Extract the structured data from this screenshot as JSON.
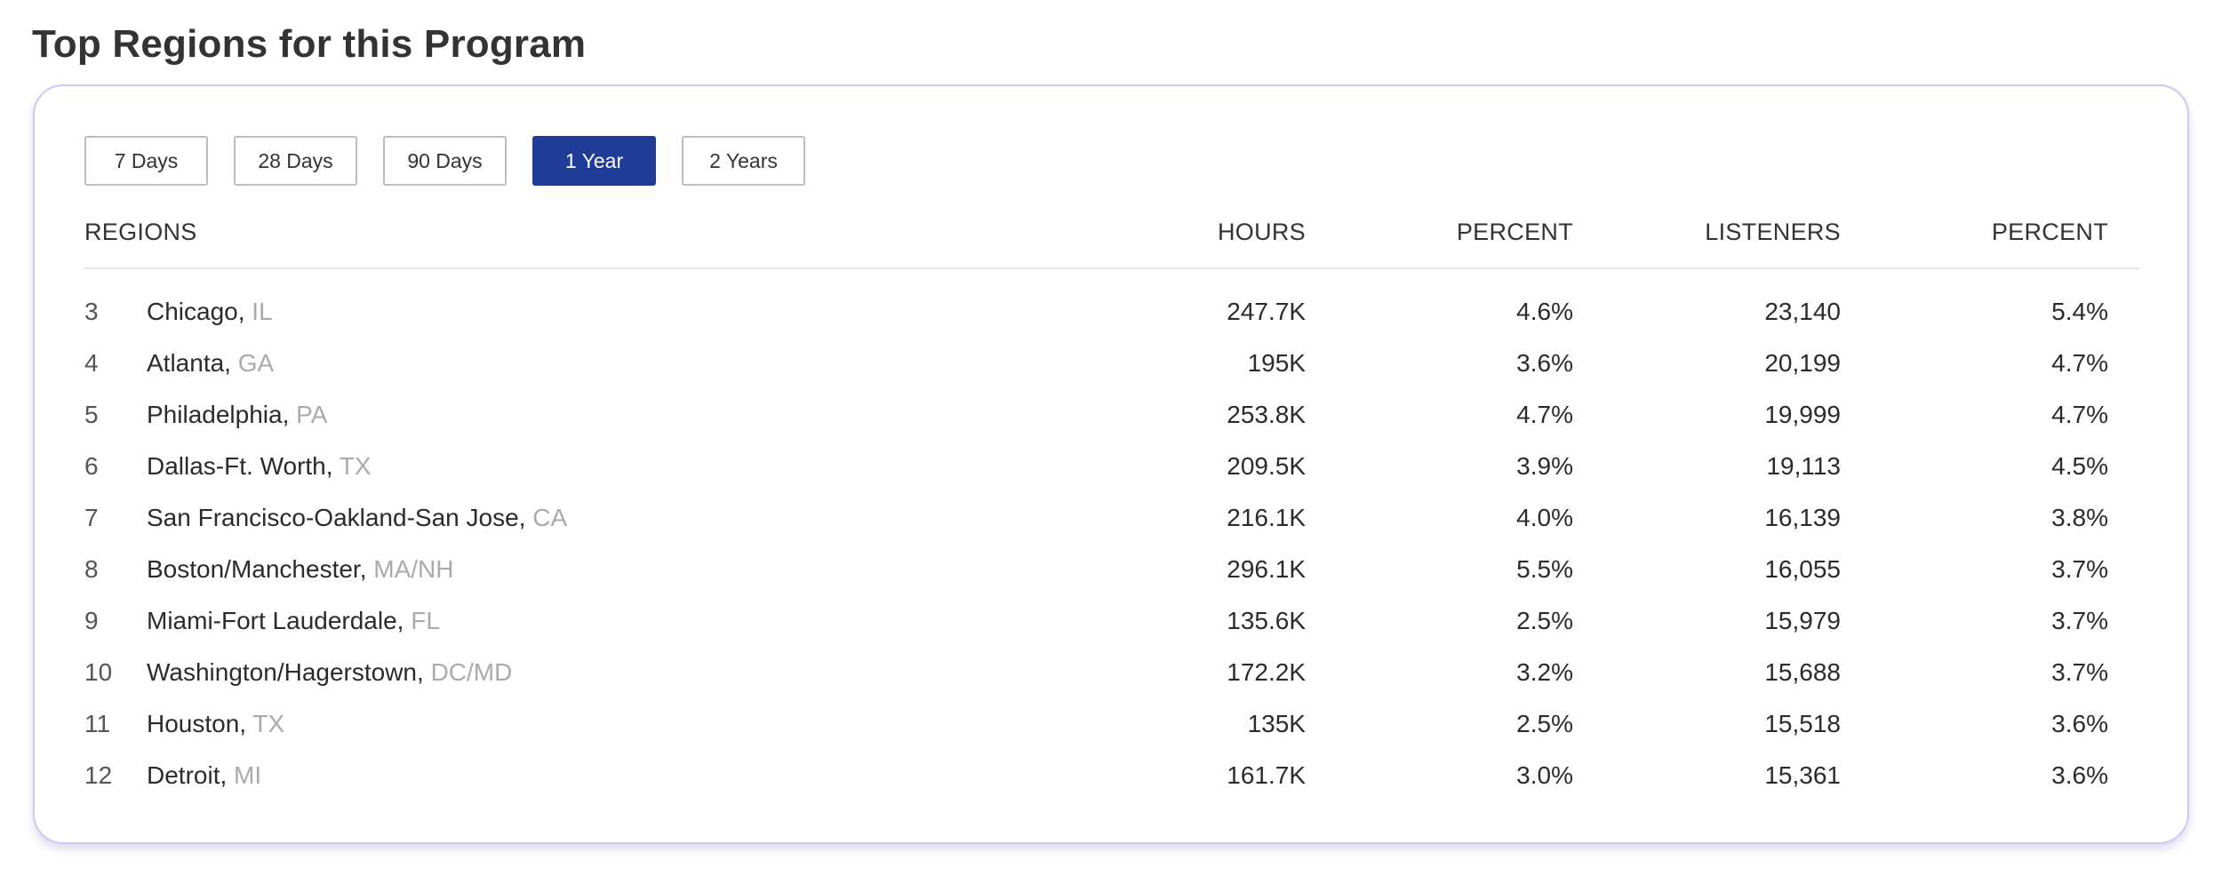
{
  "page": {
    "title": "Top Regions for this Program"
  },
  "range_buttons": [
    {
      "label": "7 Days",
      "active": false
    },
    {
      "label": "28 Days",
      "active": false
    },
    {
      "label": "90 Days",
      "active": false
    },
    {
      "label": "1 Year",
      "active": true
    },
    {
      "label": "2 Years",
      "active": false
    }
  ],
  "colors": {
    "active_button": "#1f3c99",
    "card_border": "#cfc9f1",
    "state_text": "#aaaaaa"
  },
  "table": {
    "headers": {
      "region": "REGIONS",
      "hours": "HOURS",
      "hours_percent": "PERCENT",
      "listeners": "LISTENERS",
      "listeners_percent": "PERCENT"
    },
    "rows": [
      {
        "rank": "3",
        "name": "Chicago,",
        "state": "IL",
        "hours": "247.7K",
        "hours_percent": "4.6%",
        "listeners": "23,140",
        "listeners_percent": "5.4%"
      },
      {
        "rank": "4",
        "name": "Atlanta,",
        "state": "GA",
        "hours": "195K",
        "hours_percent": "3.6%",
        "listeners": "20,199",
        "listeners_percent": "4.7%"
      },
      {
        "rank": "5",
        "name": "Philadelphia,",
        "state": "PA",
        "hours": "253.8K",
        "hours_percent": "4.7%",
        "listeners": "19,999",
        "listeners_percent": "4.7%"
      },
      {
        "rank": "6",
        "name": "Dallas-Ft. Worth,",
        "state": "TX",
        "hours": "209.5K",
        "hours_percent": "3.9%",
        "listeners": "19,113",
        "listeners_percent": "4.5%"
      },
      {
        "rank": "7",
        "name": "San Francisco-Oakland-San Jose,",
        "state": "CA",
        "hours": "216.1K",
        "hours_percent": "4.0%",
        "listeners": "16,139",
        "listeners_percent": "3.8%"
      },
      {
        "rank": "8",
        "name": "Boston/Manchester,",
        "state": "MA/NH",
        "hours": "296.1K",
        "hours_percent": "5.5%",
        "listeners": "16,055",
        "listeners_percent": "3.7%"
      },
      {
        "rank": "9",
        "name": "Miami-Fort Lauderdale,",
        "state": "FL",
        "hours": "135.6K",
        "hours_percent": "2.5%",
        "listeners": "15,979",
        "listeners_percent": "3.7%"
      },
      {
        "rank": "10",
        "name": "Washington/Hagerstown,",
        "state": "DC/MD",
        "hours": "172.2K",
        "hours_percent": "3.2%",
        "listeners": "15,688",
        "listeners_percent": "3.7%"
      },
      {
        "rank": "11",
        "name": "Houston,",
        "state": "TX",
        "hours": "135K",
        "hours_percent": "2.5%",
        "listeners": "15,518",
        "listeners_percent": "3.6%"
      },
      {
        "rank": "12",
        "name": "Detroit,",
        "state": "MI",
        "hours": "161.7K",
        "hours_percent": "3.0%",
        "listeners": "15,361",
        "listeners_percent": "3.6%"
      }
    ]
  }
}
